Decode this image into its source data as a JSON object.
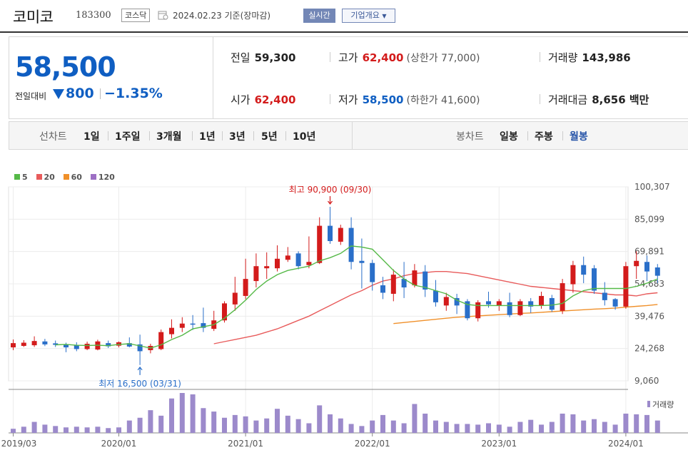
{
  "header": {
    "name": "코미코",
    "code": "183300",
    "market": "코스닥",
    "date_text": "2024.02.23  기준(장마감)",
    "realtime_label": "실시간",
    "company_info_label": "기업개요"
  },
  "summary": {
    "price": "58,500",
    "change_label": "전일대비",
    "change_value": "800",
    "change_rate": "−1.35%",
    "prev_close_label": "전일",
    "prev_close": "59,300",
    "high_label": "고가",
    "high": "62,400",
    "upper_limit": "(상한가 77,000)",
    "volume_label": "거래량",
    "volume": "143,986",
    "open_label": "시가",
    "open": "62,400",
    "low_label": "저가",
    "low": "58,500",
    "lower_limit": "(하한가 41,600)",
    "amount_label": "거래대금",
    "amount": "8,656 백만"
  },
  "period": {
    "line_chart_label": "선차트",
    "line_periods": [
      "1일",
      "1주일",
      "3개월",
      "1년",
      "3년",
      "5년",
      "10년"
    ],
    "candle_chart_label": "봉차트",
    "candle_periods": [
      "일봉",
      "주봉",
      "월봉"
    ],
    "active_candle": "월봉"
  },
  "colors": {
    "up": "#d31b1b",
    "down": "#2a6fc9",
    "ma5": "#55b947",
    "ma20": "#e85b5b",
    "ma60": "#f0902a",
    "ma120": "#9d6fc4",
    "volume": "#9c8acb"
  },
  "chart_data": {
    "type": "candlestick",
    "interval": "monthly",
    "legend": [
      {
        "label": "5",
        "color": "#55b947"
      },
      {
        "label": "20",
        "color": "#e85b5b"
      },
      {
        "label": "60",
        "color": "#f0902a"
      },
      {
        "label": "120",
        "color": "#9d6fc4"
      }
    ],
    "y_ticks": [
      "100,307",
      "85,099",
      "69,891",
      "54,683",
      "39,476",
      "24,268",
      "9,060"
    ],
    "y_ticks_values": [
      100307,
      85099,
      69891,
      54683,
      39476,
      24268,
      9060
    ],
    "x_ticks": [
      "2019/03",
      "2020/01",
      "2021/01",
      "2022/01",
      "2023/01",
      "2024/01"
    ],
    "x_ticks_index": [
      0,
      10,
      22,
      34,
      46,
      58
    ],
    "high_annotation": "최고 90,900 (09/30)",
    "high_annotation_index": 30,
    "high_annotation_value": 90900,
    "low_annotation": "최저 16,500 (03/31)",
    "low_annotation_index": 12,
    "low_annotation_value": 16500,
    "volume_label": "거래량",
    "candles": [
      {
        "o": 24800,
        "c": 26800,
        "h": 28500,
        "l": 23500
      },
      {
        "o": 25500,
        "c": 27000,
        "h": 28200,
        "l": 25000
      },
      {
        "o": 25800,
        "c": 27800,
        "h": 30000,
        "l": 25000
      },
      {
        "o": 27600,
        "c": 26200,
        "h": 28800,
        "l": 25400
      },
      {
        "o": 26700,
        "c": 26000,
        "h": 28000,
        "l": 25000
      },
      {
        "o": 26300,
        "c": 24800,
        "h": 27000,
        "l": 22500
      },
      {
        "o": 26000,
        "c": 24000,
        "h": 27200,
        "l": 23000
      },
      {
        "o": 24000,
        "c": 26500,
        "h": 27500,
        "l": 23500
      },
      {
        "o": 23800,
        "c": 27600,
        "h": 28400,
        "l": 23400
      },
      {
        "o": 26800,
        "c": 25300,
        "h": 28000,
        "l": 24500
      },
      {
        "o": 25600,
        "c": 27200,
        "h": 27600,
        "l": 24800
      },
      {
        "o": 26800,
        "c": 25200,
        "h": 29500,
        "l": 24800
      },
      {
        "o": 26200,
        "c": 23000,
        "h": 30800,
        "l": 16500
      },
      {
        "o": 23500,
        "c": 25500,
        "h": 26500,
        "l": 22000
      },
      {
        "o": 24000,
        "c": 32000,
        "h": 33200,
        "l": 23500
      },
      {
        "o": 31000,
        "c": 34000,
        "h": 38000,
        "l": 29000
      },
      {
        "o": 34000,
        "c": 36000,
        "h": 39000,
        "l": 32000
      },
      {
        "o": 36000,
        "c": 35500,
        "h": 40000,
        "l": 33000
      },
      {
        "o": 36200,
        "c": 34000,
        "h": 43500,
        "l": 32000
      },
      {
        "o": 33500,
        "c": 37500,
        "h": 42000,
        "l": 32500
      },
      {
        "o": 37500,
        "c": 45500,
        "h": 46500,
        "l": 36500
      },
      {
        "o": 45000,
        "c": 50500,
        "h": 58000,
        "l": 42000
      },
      {
        "o": 49000,
        "c": 57000,
        "h": 66500,
        "l": 47500
      },
      {
        "o": 56000,
        "c": 63000,
        "h": 69000,
        "l": 53000
      },
      {
        "o": 62000,
        "c": 63000,
        "h": 69500,
        "l": 57000
      },
      {
        "o": 62000,
        "c": 66500,
        "h": 72800,
        "l": 60500
      },
      {
        "o": 66000,
        "c": 68000,
        "h": 72000,
        "l": 65000
      },
      {
        "o": 69000,
        "c": 63000,
        "h": 70000,
        "l": 61500
      },
      {
        "o": 63500,
        "c": 65000,
        "h": 77000,
        "l": 62000
      },
      {
        "o": 64500,
        "c": 82000,
        "h": 86000,
        "l": 64000
      },
      {
        "o": 82000,
        "c": 74800,
        "h": 90900,
        "l": 73500
      },
      {
        "o": 74500,
        "c": 81000,
        "h": 82500,
        "l": 73000
      },
      {
        "o": 81000,
        "c": 65000,
        "h": 86000,
        "l": 61500
      },
      {
        "o": 65500,
        "c": 64500,
        "h": 76000,
        "l": 52500
      },
      {
        "o": 64500,
        "c": 55500,
        "h": 66000,
        "l": 51500
      },
      {
        "o": 54000,
        "c": 50500,
        "h": 58000,
        "l": 47500
      },
      {
        "o": 50000,
        "c": 59000,
        "h": 61500,
        "l": 46500
      },
      {
        "o": 57000,
        "c": 53000,
        "h": 65000,
        "l": 48000
      },
      {
        "o": 54000,
        "c": 61000,
        "h": 64000,
        "l": 53000
      },
      {
        "o": 60500,
        "c": 52000,
        "h": 63500,
        "l": 48500
      },
      {
        "o": 51500,
        "c": 46000,
        "h": 56500,
        "l": 44000
      },
      {
        "o": 44500,
        "c": 48500,
        "h": 50500,
        "l": 42000
      },
      {
        "o": 48000,
        "c": 44500,
        "h": 50000,
        "l": 40500
      },
      {
        "o": 46500,
        "c": 38500,
        "h": 47500,
        "l": 37500
      },
      {
        "o": 38500,
        "c": 46000,
        "h": 47000,
        "l": 37000
      },
      {
        "o": 46500,
        "c": 45000,
        "h": 51000,
        "l": 43500
      },
      {
        "o": 44500,
        "c": 46500,
        "h": 47500,
        "l": 42000
      },
      {
        "o": 46000,
        "c": 40000,
        "h": 50500,
        "l": 39000
      },
      {
        "o": 40000,
        "c": 46500,
        "h": 47500,
        "l": 39500
      },
      {
        "o": 46500,
        "c": 44000,
        "h": 48000,
        "l": 41000
      },
      {
        "o": 44500,
        "c": 49000,
        "h": 51000,
        "l": 43000
      },
      {
        "o": 48000,
        "c": 42500,
        "h": 49500,
        "l": 41500
      },
      {
        "o": 42000,
        "c": 55000,
        "h": 57000,
        "l": 40500
      },
      {
        "o": 54500,
        "c": 63500,
        "h": 65500,
        "l": 50500
      },
      {
        "o": 63500,
        "c": 59000,
        "h": 67500,
        "l": 55000
      },
      {
        "o": 62000,
        "c": 51500,
        "h": 63500,
        "l": 50000
      },
      {
        "o": 50500,
        "c": 47000,
        "h": 55500,
        "l": 44500
      },
      {
        "o": 47500,
        "c": 44000,
        "h": 48000,
        "l": 42500
      },
      {
        "o": 44000,
        "c": 63000,
        "h": 65000,
        "l": 43000
      },
      {
        "o": 63000,
        "c": 65500,
        "h": 70000,
        "l": 57000
      },
      {
        "o": 65000,
        "c": 60500,
        "h": 68000,
        "l": 56000
      },
      {
        "o": 62400,
        "c": 58500,
        "h": 64000,
        "l": 55000
      }
    ],
    "ma5": [
      null,
      null,
      null,
      null,
      26000,
      26200,
      25800,
      25700,
      25800,
      25600,
      26200,
      26500,
      25500,
      24500,
      26000,
      28500,
      30500,
      33500,
      34500,
      35500,
      38500,
      42500,
      47000,
      52000,
      56000,
      59000,
      61000,
      62000,
      63000,
      65500,
      67000,
      69000,
      72500,
      72000,
      71000,
      66000,
      61000,
      57000,
      54000,
      53000,
      51500,
      50000,
      47000,
      45000,
      44500,
      44500,
      44500,
      44500,
      44500,
      44500,
      44500,
      44700,
      45500,
      49000,
      51500,
      52500,
      52500,
      52500,
      52500,
      53500,
      55000,
      57000
    ],
    "ma20": [
      null,
      null,
      null,
      null,
      null,
      null,
      null,
      null,
      null,
      null,
      null,
      null,
      null,
      null,
      null,
      null,
      null,
      null,
      null,
      26500,
      27500,
      28500,
      29500,
      30500,
      32000,
      33500,
      35500,
      37500,
      39500,
      42000,
      44500,
      47000,
      49500,
      51500,
      54000,
      56000,
      57000,
      58500,
      59500,
      60000,
      60500,
      60500,
      60000,
      59500,
      58500,
      57500,
      56500,
      55500,
      54500,
      53500,
      53000,
      52500,
      52000,
      51500,
      51000,
      50500,
      50000,
      49500,
      49500,
      49000,
      50000,
      50500
    ],
    "ma60": [
      null,
      null,
      null,
      null,
      null,
      null,
      null,
      null,
      null,
      null,
      null,
      null,
      null,
      null,
      null,
      null,
      null,
      null,
      null,
      null,
      null,
      null,
      null,
      null,
      null,
      null,
      null,
      null,
      null,
      null,
      null,
      null,
      null,
      null,
      null,
      null,
      36000,
      36500,
      37000,
      37500,
      38000,
      38500,
      39000,
      39300,
      39600,
      39900,
      40200,
      40500,
      40800,
      41000,
      41300,
      41600,
      41900,
      42200,
      42500,
      42800,
      43000,
      43300,
      43700,
      44100,
      44500,
      45000
    ],
    "volume": [
      6,
      9,
      16,
      12,
      10,
      8,
      9,
      8,
      9,
      7,
      8,
      18,
      22,
      33,
      25,
      50,
      58,
      56,
      36,
      31,
      22,
      26,
      24,
      18,
      21,
      35,
      25,
      20,
      14,
      40,
      27,
      21,
      13,
      10,
      18,
      26,
      18,
      14,
      42,
      28,
      18,
      16,
      13,
      13,
      12,
      14,
      12,
      9,
      16,
      19,
      12,
      16,
      28,
      27,
      18,
      20,
      16,
      12,
      28,
      27,
      26,
      18
    ]
  }
}
